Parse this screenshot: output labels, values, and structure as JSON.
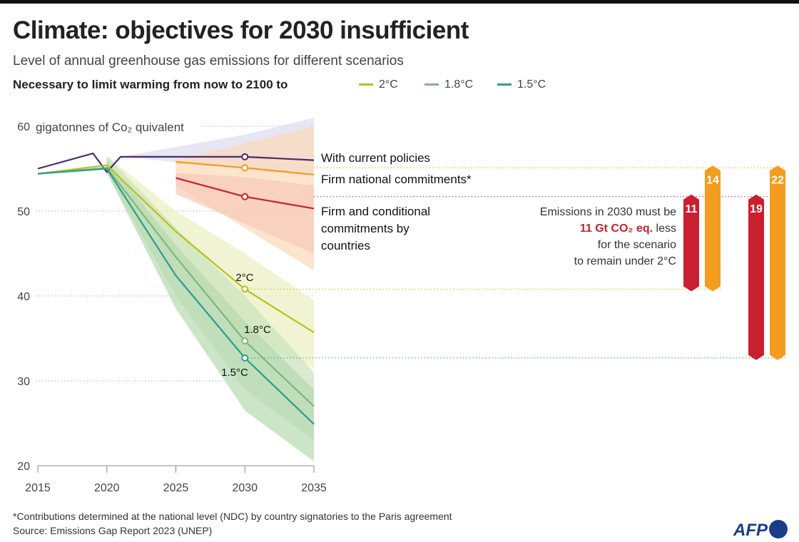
{
  "title": "Climate: objectives for 2030 insufficient",
  "subtitle": "Level of annual greenhouse gas emissions for different scenarios",
  "legend": {
    "title": "Necessary to limit warming from now to 2100 to",
    "items": [
      {
        "label": "2°C",
        "color": "#b5c21b"
      },
      {
        "label": "1.8°C",
        "color": "#7fb77e"
      },
      {
        "label": "1.5°C",
        "color": "#2a9d8f"
      }
    ]
  },
  "footnote": "*Contributions determined at the national level (NDC) by country signatories to the Paris agreement",
  "source": "Source: Emissions Gap Report 2023 (UNEP)",
  "logo": "AFP",
  "chart_data": {
    "type": "line",
    "ylabel": "gigatonnes of Co₂ quivalent",
    "ylim": [
      20,
      60
    ],
    "xlim": [
      2015,
      2035
    ],
    "yticks": [
      "20",
      "30",
      "40",
      "50",
      "60"
    ],
    "xticks": [
      "2015",
      "2020",
      "2025",
      "2030",
      "2035"
    ],
    "grid": true,
    "series": [
      {
        "name": "With current policies",
        "color": "#4b2a6e",
        "x": [
          2015,
          2019,
          2020,
          2021,
          2030,
          2035
        ],
        "y": [
          55.0,
          56.8,
          54.6,
          56.4,
          56.4,
          56.0
        ],
        "band": {
          "color": "#dcdcef",
          "x": [
            2021,
            2030,
            2035
          ],
          "low": [
            56.4,
            55,
            54
          ],
          "high": [
            56.4,
            59,
            61
          ]
        }
      },
      {
        "name": "Firm national commitments*",
        "color": "#f39c1f",
        "x": [
          2025,
          2030,
          2035
        ],
        "y": [
          55.8,
          55.1,
          54.3
        ],
        "band": {
          "color": "#fbd9b8",
          "x": [
            2025,
            2030,
            2035
          ],
          "low": [
            53,
            48,
            43
          ],
          "high": [
            56,
            58,
            60
          ]
        }
      },
      {
        "name": "Firm and conditional commitments by countries",
        "color": "#c8202f",
        "x": [
          2025,
          2030,
          2035
        ],
        "y": [
          53.9,
          51.7,
          50.3
        ],
        "band": {
          "color": "#f7c9b9",
          "x": [
            2025,
            2030,
            2035
          ],
          "low": [
            52,
            48.5,
            45
          ],
          "high": [
            54.5,
            54,
            53
          ]
        }
      },
      {
        "name": "2°C",
        "color": "#b5c21b",
        "x": [
          2015,
          2020,
          2025,
          2030,
          2035
        ],
        "y": [
          54.4,
          55.4,
          47.6,
          40.8,
          35.7
        ],
        "band": {
          "color": "#e9efbf",
          "x": [
            2020,
            2025,
            2030,
            2035
          ],
          "low": [
            55,
            44,
            35,
            31.5
          ],
          "high": [
            56.5,
            50,
            45,
            39.5
          ]
        }
      },
      {
        "name": "1.8°C",
        "color": "#7fb77e",
        "x": [
          2015,
          2020,
          2025,
          2030,
          2035
        ],
        "y": [
          54.4,
          55.1,
          44.6,
          34.7,
          27.0
        ],
        "band": {
          "color": "#c9e2bd",
          "x": [
            2020,
            2025,
            2030,
            2035
          ],
          "low": [
            54.5,
            40,
            29,
            23
          ],
          "high": [
            56.5,
            48,
            40,
            31
          ]
        }
      },
      {
        "name": "1.5°C",
        "color": "#2a9d8f",
        "x": [
          2015,
          2020,
          2025,
          2030,
          2035
        ],
        "y": [
          54.4,
          55.0,
          42.4,
          32.7,
          24.9
        ],
        "band": {
          "color": "#b7d9b0",
          "x": [
            2020,
            2025,
            2030,
            2035
          ],
          "low": [
            54.5,
            38.5,
            26.5,
            20.5
          ],
          "high": [
            56,
            46,
            37,
            29
          ]
        }
      }
    ],
    "points_2030": {
      "2°C": 40.8,
      "1.8°C": 34.7,
      "1.5°C": 32.7
    },
    "gaps": [
      {
        "value": 11,
        "from": 51.7,
        "to": 40.8,
        "color": "#c8202f"
      },
      {
        "value": 14,
        "from": 55.1,
        "to": 40.8,
        "color": "#f39c1f"
      },
      {
        "value": 19,
        "from": 51.7,
        "to": 32.7,
        "color": "#c8202f"
      },
      {
        "value": 22,
        "from": 55.1,
        "to": 32.7,
        "color": "#f39c1f"
      }
    ],
    "annotation": {
      "line1": "Emissions in 2030 must be",
      "highlight": "11 Gt CO₂ eq.",
      "line2": "less",
      "line3": "for the scenario",
      "line4": "to remain under 2°C"
    }
  }
}
